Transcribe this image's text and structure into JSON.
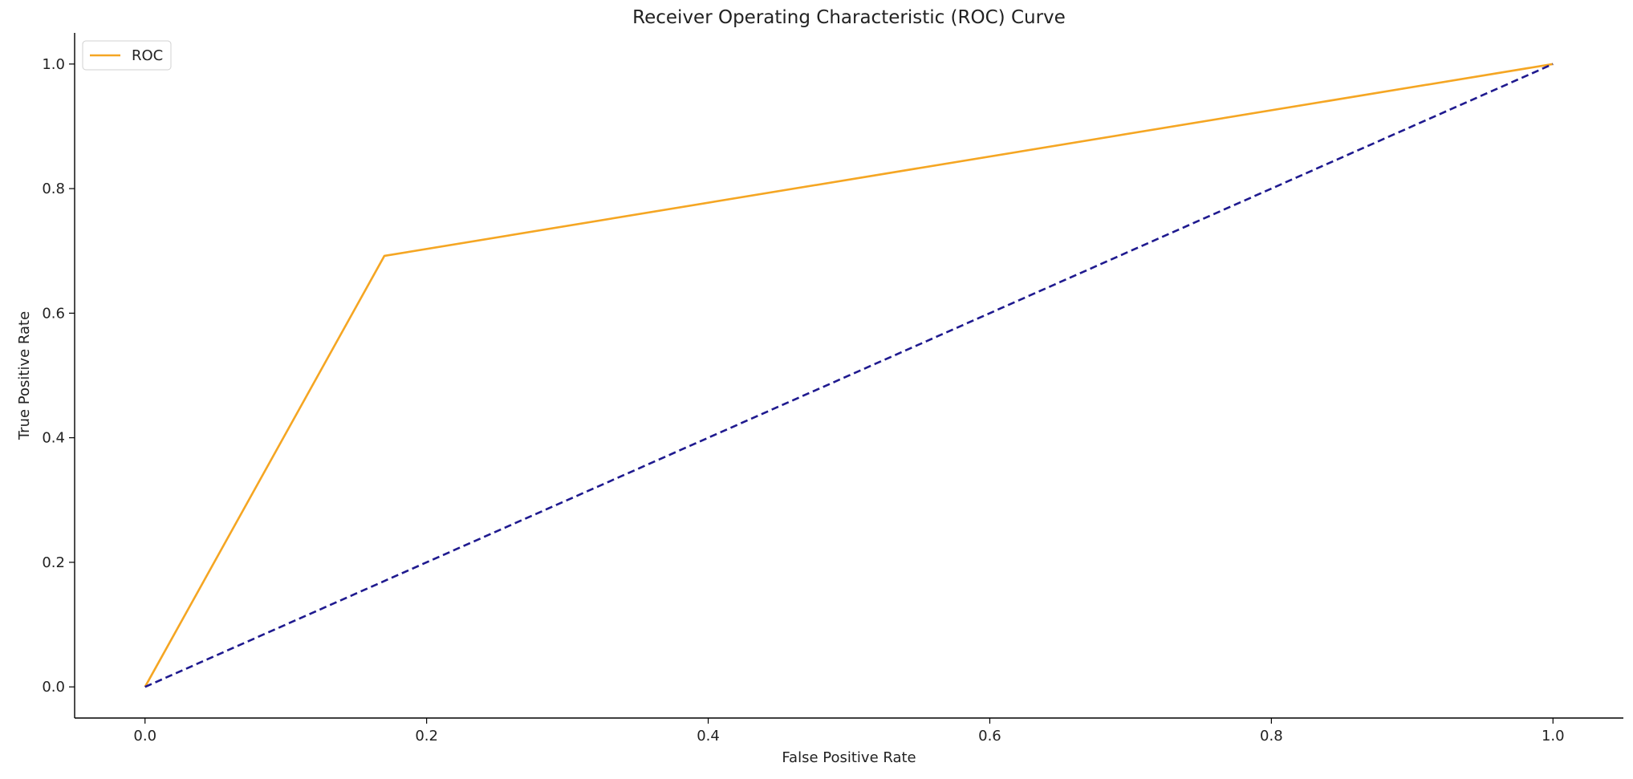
{
  "chart_data": {
    "type": "line",
    "title": "Receiver Operating Characteristic (ROC) Curve",
    "xlabel": "False Positive Rate",
    "ylabel": "True Positive Rate",
    "xlim": [
      -0.05,
      1.05
    ],
    "ylim": [
      -0.05,
      1.05
    ],
    "xticks": [
      0.0,
      0.2,
      0.4,
      0.6,
      0.8,
      1.0
    ],
    "yticks": [
      0.0,
      0.2,
      0.4,
      0.6,
      0.8,
      1.0
    ],
    "xtick_labels": [
      "0.0",
      "0.2",
      "0.4",
      "0.6",
      "0.8",
      "1.0"
    ],
    "ytick_labels": [
      "0.0",
      "0.2",
      "0.4",
      "0.6",
      "0.8",
      "1.0"
    ],
    "grid": false,
    "legend_position": "top-left",
    "series": [
      {
        "name": "ROC",
        "color": "#f5a623",
        "dash": "solid",
        "x": [
          0.0,
          0.17,
          1.0
        ],
        "y": [
          0.0,
          0.692,
          1.0
        ]
      },
      {
        "color": "#1f1a8f",
        "dash": "dashed",
        "x": [
          0.0,
          1.0
        ],
        "y": [
          0.0,
          1.0
        ]
      }
    ]
  }
}
